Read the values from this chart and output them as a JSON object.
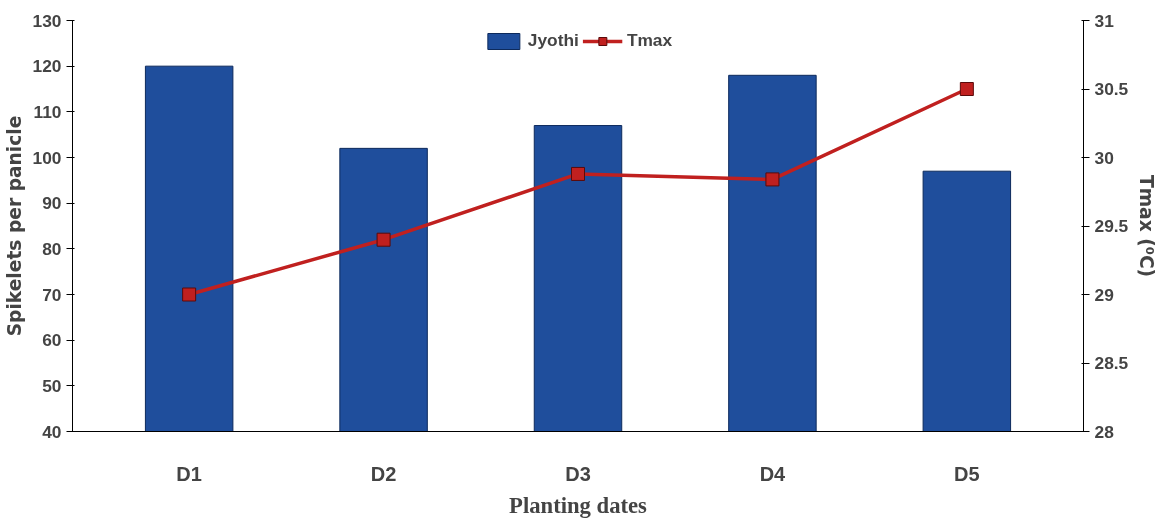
{
  "chart_data": {
    "type": "bar",
    "xlabel": "Planting dates",
    "ylabel": "Spikelets per panicle",
    "y2label": "Tmax (⁰C)",
    "categories": [
      "D1",
      "D2",
      "D3",
      "D4",
      "D5"
    ],
    "series": [
      {
        "name": "Jyothi",
        "color": "#1f4e9c",
        "values": [
          120,
          102,
          107,
          118,
          97
        ]
      },
      {
        "name": "Tmax",
        "type": "line",
        "axis": "y2",
        "color": "#c0201f",
        "values": [
          29.0,
          29.4,
          29.88,
          29.84,
          30.5
        ]
      }
    ],
    "ylim": [
      40,
      130
    ],
    "yticks": [
      40,
      50,
      60,
      70,
      80,
      90,
      100,
      110,
      120,
      130
    ],
    "y2lim": [
      28,
      31
    ],
    "y2ticks": [
      28,
      28.5,
      29,
      29.5,
      30,
      30.5,
      31
    ],
    "grid": false,
    "legend": "top",
    "marker": "square",
    "line_style": "solid"
  }
}
